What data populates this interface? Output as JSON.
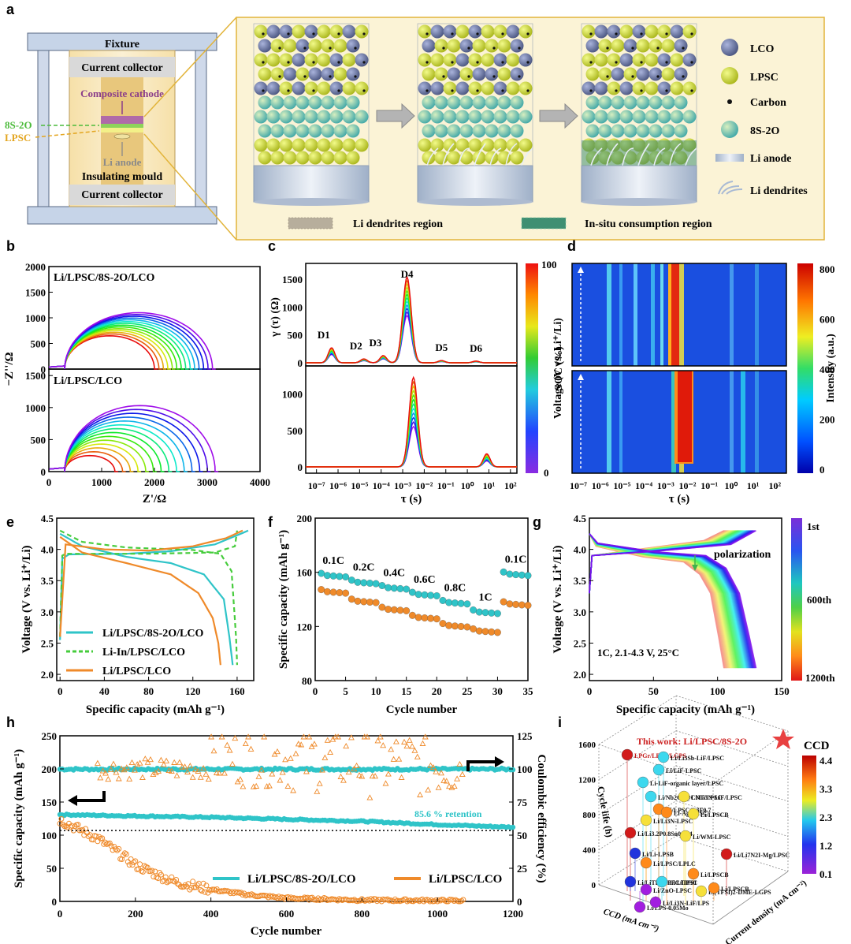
{
  "panels": {
    "a": {
      "letter": "a",
      "cell_labels": {
        "fixture": "Fixture",
        "current_collector_top": "Current collector",
        "composite_cathode": "Composite cathode",
        "layer_8s2o": "8S-2O",
        "layer_lpsc": "LPSC",
        "li_anode": "Li anode",
        "insulating_mould": "Insulating mould",
        "current_collector_bottom": "Current collector"
      },
      "legend": [
        {
          "label": "LCO",
          "color": "#6b7aa6"
        },
        {
          "label": "LPSC",
          "color": "#d4e33a"
        },
        {
          "label": "Carbon",
          "color": "#111111"
        },
        {
          "label": "8S-2O",
          "color": "#9dd6b8"
        },
        {
          "label": "Li anode",
          "color": "#c9d3e6"
        },
        {
          "label": "Li dendrites",
          "color": "#b9c8de"
        }
      ],
      "region_labels": {
        "dendrite": "Li dendrites region",
        "consumption": "In-situ consumption region"
      }
    },
    "b": {
      "letter": "b",
      "top_label": "Li/LPSC/8S-2O/LCO",
      "bottom_label": "Li/LPSC/LCO",
      "xlabel": "Z'/Ω",
      "ylabel": "−Z''/Ω",
      "xticks": [
        "0",
        "1000",
        "2000",
        "3000",
        "4000"
      ],
      "yticks": [
        "0",
        "500",
        "1000",
        "1500",
        "2000"
      ],
      "yticks2": [
        "0",
        "500",
        "1000",
        "1500"
      ]
    },
    "c": {
      "letter": "c",
      "peaks": [
        "D1",
        "D2",
        "D3",
        "D4",
        "D5",
        "D6"
      ],
      "ylabel": "γ (τ) (Ω)",
      "xlabel": "τ (s)",
      "yticks_top": [
        "0",
        "500",
        "1000",
        "1500"
      ],
      "yticks_bottom": [
        "0",
        "500",
        "1000"
      ],
      "xticks": [
        "10⁻⁷",
        "10⁻⁶",
        "10⁻⁵",
        "10⁻⁴",
        "10⁻³",
        "10⁻²",
        "10⁻¹",
        "10⁰",
        "10¹",
        "10²"
      ],
      "colorbar_label": "SOC (%)",
      "colorbar_ticks": [
        "100",
        "0"
      ]
    },
    "d": {
      "letter": "d",
      "xlabel": "τ (s)",
      "xticks": [
        "10⁻⁷",
        "10⁻⁶",
        "10⁻⁵",
        "10⁻⁴",
        "10⁻³",
        "10⁻²",
        "10⁻¹",
        "10⁰",
        "10¹",
        "10²"
      ],
      "colorbar_label": "Intensity (a.u.)",
      "colorbar_ticks": [
        "800",
        "600",
        "400",
        "200",
        "0"
      ]
    },
    "e": {
      "letter": "e",
      "xlabel": "Specific capacity (mAh g⁻¹)",
      "ylabel": "Voltage (V vs. Li⁺/Li)",
      "xticks": [
        "0",
        "40",
        "80",
        "120",
        "160"
      ],
      "yticks": [
        "2.0",
        "2.5",
        "3.0",
        "3.5",
        "4.0",
        "4.5"
      ],
      "legend": [
        {
          "label": "Li/LPSC/8S-2O/LCO",
          "color": "#2fc4c8",
          "dash": "none"
        },
        {
          "label": "Li-In/LPSC/LCO",
          "color": "#46cc3c",
          "dash": "6,4"
        },
        {
          "label": "Li/LPSC/LCO",
          "color": "#ef8a2a",
          "dash": "none"
        }
      ]
    },
    "f": {
      "letter": "f",
      "xlabel": "Cycle number",
      "ylabel": "Specific capacity (mAh g⁻¹)",
      "xticks": [
        "0",
        "5",
        "10",
        "15",
        "20",
        "25",
        "30",
        "35"
      ],
      "yticks": [
        "80",
        "120",
        "160",
        "200"
      ],
      "rate_labels": [
        "0.1C",
        "0.2C",
        "0.4C",
        "0.6C",
        "0.8C",
        "1C",
        "0.1C"
      ]
    },
    "g": {
      "letter": "g",
      "xlabel": "Specific capacity (mAh g⁻¹)",
      "ylabel": "Voltage (V vs. Li⁺/Li)",
      "xticks": [
        "0",
        "50",
        "100",
        "150"
      ],
      "yticks": [
        "2.0",
        "2.5",
        "3.0",
        "3.5",
        "4.0",
        "4.5"
      ],
      "annotation": "polarization",
      "condition": "1C, 2.1-4.3 V, 25°C",
      "colorbar_ticks": [
        "1st",
        "600th",
        "1200th"
      ]
    },
    "h": {
      "letter": "h",
      "xlabel": "Cycle number",
      "ylabel": "Specific capacity (mAh g⁻¹)",
      "ylabel_right": "Coulombic efficiency (%)",
      "xticks": [
        "0",
        "200",
        "400",
        "600",
        "800",
        "1000",
        "1200"
      ],
      "yticks": [
        "0",
        "50",
        "100",
        "150",
        "200",
        "250"
      ],
      "yticks_right": [
        "0",
        "25",
        "50",
        "75",
        "100",
        "125"
      ],
      "retention": "85.6 % retention",
      "legend": [
        {
          "label": "Li/LPSC/8S-2O/LCO",
          "color": "#2fc4c8"
        },
        {
          "label": "Li/LPSC/LCO",
          "color": "#ef8a2a"
        }
      ]
    },
    "i": {
      "letter": "i",
      "title": "This work: Li/LPSC/8S-2O",
      "zlabel": "Cycle life (h)",
      "xlabel": "CCD (mA cm⁻²)",
      "ylabel": "Current density (mA cm⁻²)",
      "zticks": [
        "0",
        "400",
        "800",
        "1200",
        "1600"
      ],
      "legend_title": "CCD",
      "legend_ticks": [
        "4.4",
        "3.3",
        "2.3",
        "1.2",
        "0.1"
      ],
      "labels": [
        "LPGr/LPSC/LGPS",
        "Li/Li3Sb-LiF/LPSC",
        "Li/LiF-LPSC",
        "Li-LiF-organic layer/LPSC",
        "Li/Nb2O5@CNT/LPSC",
        "Li/Li3N-LiF/LPSC",
        "Li/LPSC/0.3F0.7",
        "Li-Ag/LPSC",
        "Li/Li3N-LPSC",
        "Li/LPSCB",
        "Li/Li3.2P0.8Sn0.2S4",
        "Li/WM-LPSC",
        "Li/Li-LPSB",
        "Li/Li7N2I-Mg/LPSC",
        "Li/LPSC/LPLC",
        "Li/LPSCB",
        "Li/LiTFSI-PPC/LPSC",
        "Li/ZnO-LPSC",
        "Li/LiTFSI",
        "Li(TFSI)2-DME-LGPS",
        "Li/LPS-0.05Mo",
        "Li/Li3N-LiF/LPS",
        "Li/LPSCB"
      ]
    }
  },
  "chart_data": [
    {
      "type": "line",
      "panel": "b",
      "title": "Li/LPSC/8S-2O/LCO (top) and Li/LPSC/LCO (bottom) Nyquist plots",
      "xlabel": "Z'/Ω",
      "ylabel": "−Z''/Ω",
      "xlim": [
        0,
        4000
      ],
      "ylim_top": [
        0,
        2000
      ],
      "ylim_bottom": [
        0,
        1600
      ],
      "series_top": {
        "count": 14,
        "arc_start": 300,
        "arc_end_range": [
          2000,
          3100
        ],
        "arc_height_range": [
          650,
          1100
        ]
      },
      "series_bottom": {
        "count": 14,
        "arc_start": 300,
        "arc_end_range": [
          1250,
          3150
        ],
        "arc_height_range": [
          250,
          1030
        ]
      }
    },
    {
      "type": "line",
      "panel": "c",
      "xlabel": "τ (s)",
      "ylabel": "γ (τ) (Ω)",
      "xlim_log10": [
        -7.5,
        2.3
      ],
      "peaks_top": [
        {
          "name": "D1",
          "log_tau": -6.3,
          "height": 270
        },
        {
          "name": "D2",
          "log_tau": -4.8,
          "height": 70
        },
        {
          "name": "D3",
          "log_tau": -3.9,
          "height": 130
        },
        {
          "name": "D4",
          "log_tau": -2.8,
          "height": 1540
        },
        {
          "name": "D5",
          "log_tau": -1.2,
          "height": 40
        },
        {
          "name": "D6",
          "log_tau": 0.4,
          "height": 30
        }
      ],
      "peaks_bottom": [
        {
          "log_tau": -2.5,
          "height": 1230
        },
        {
          "log_tau": 0.9,
          "height": 180
        }
      ]
    },
    {
      "type": "heatmap",
      "panel": "d",
      "xlabel": "τ (s)",
      "ylabel": "SOC (%)",
      "color_range": [
        0,
        800
      ]
    },
    {
      "type": "line",
      "panel": "e",
      "xlabel": "Specific capacity (mAh g⁻¹)",
      "ylabel": "Voltage (V vs. Li⁺/Li)",
      "xlim": [
        -3,
        175
      ],
      "ylim": [
        1.9,
        4.5
      ],
      "series": [
        {
          "name": "Li/LPSC/8S-2O/LCO",
          "charge": [
            [
              0,
              2.55
            ],
            [
              2,
              3.85
            ],
            [
              8,
              3.92
            ],
            [
              60,
              3.93
            ],
            [
              100,
              3.97
            ],
            [
              140,
              4.08
            ],
            [
              170,
              4.3
            ]
          ],
          "discharge": [
            [
              0,
              4.25
            ],
            [
              20,
              4.05
            ],
            [
              60,
              3.88
            ],
            [
              100,
              3.78
            ],
            [
              130,
              3.6
            ],
            [
              148,
              3.2
            ],
            [
              153,
              2.6
            ],
            [
              156,
              2.15
            ]
          ]
        },
        {
          "name": "Li-In/LPSC/LCO",
          "charge": [
            [
              0,
              2.6
            ],
            [
              2,
              3.9
            ],
            [
              5,
              3.93
            ],
            [
              80,
              3.93
            ],
            [
              140,
              3.95
            ],
            [
              158,
              4.05
            ],
            [
              160,
              4.3
            ]
          ],
          "discharge": [
            [
              0,
              4.3
            ],
            [
              20,
              4.12
            ],
            [
              60,
              4.03
            ],
            [
              120,
              3.99
            ],
            [
              145,
              3.93
            ],
            [
              155,
              3.65
            ],
            [
              159,
              2.6
            ],
            [
              160,
              2.15
            ]
          ]
        },
        {
          "name": "Li/LPSC/LCO",
          "charge": [
            [
              0,
              2.6
            ],
            [
              5,
              4.08
            ],
            [
              40,
              4.0
            ],
            [
              80,
              3.98
            ],
            [
              120,
              4.05
            ],
            [
              150,
              4.18
            ],
            [
              165,
              4.3
            ]
          ],
          "discharge": [
            [
              0,
              4.2
            ],
            [
              20,
              3.95
            ],
            [
              60,
              3.78
            ],
            [
              100,
              3.6
            ],
            [
              125,
              3.3
            ],
            [
              138,
              2.9
            ],
            [
              143,
              2.5
            ],
            [
              145,
              2.15
            ]
          ]
        }
      ]
    },
    {
      "type": "scatter",
      "panel": "f",
      "xlabel": "Cycle number",
      "ylabel": "Specific capacity (mAh g⁻¹)",
      "xlim": [
        0,
        35
      ],
      "ylim": [
        80,
        200
      ],
      "categories": [
        "0.1C",
        "0.2C",
        "0.4C",
        "0.6C",
        "0.8C",
        "1C",
        "0.1C"
      ],
      "series": [
        {
          "name": "Li/LPSC/8S-2O/LCO",
          "values": [
            158,
            153,
            149,
            144,
            138,
            131,
            159
          ]
        },
        {
          "name": "Li/LPSC/LCO",
          "values": [
            146,
            139,
            133,
            127,
            121,
            117,
            137
          ]
        }
      ]
    },
    {
      "type": "line",
      "panel": "g",
      "xlabel": "Specific capacity (mAh g⁻¹)",
      "ylabel": "Voltage (V vs. Li⁺/Li)",
      "xlim": [
        0,
        150
      ],
      "ylim": [
        1.9,
        4.5
      ],
      "cycles": [
        1,
        1200
      ],
      "capacity_range": [
        105,
        130
      ]
    },
    {
      "type": "scatter",
      "panel": "h",
      "xlabel": "Cycle number",
      "ylabel": "Specific capacity (mAh g⁻¹)",
      "ylabel_right": "Coulombic efficiency (%)",
      "xlim": [
        0,
        1200
      ],
      "ylim": [
        0,
        250
      ],
      "ylim_right": [
        0,
        125
      ],
      "series": [
        {
          "name": "Li/LPSC/8S-2O/LCO capacity",
          "x": [
            0,
            200,
            400,
            600,
            800,
            1000,
            1200
          ],
          "values": [
            131,
            129,
            127,
            124,
            121,
            116,
            112
          ]
        },
        {
          "name": "Li/LPSC/LCO capacity",
          "x": [
            0,
            100,
            200,
            300,
            400,
            500,
            600,
            800,
            1070
          ],
          "values": [
            123,
            95,
            55,
            30,
            18,
            10,
            5,
            2,
            1
          ]
        },
        {
          "name": "Li/LPSC/8S-2O/LCO CE",
          "x": [
            0,
            1200
          ],
          "values": [
            99.8,
            99.8
          ]
        },
        {
          "name": "Li/LPSC/LCO CE",
          "x": [
            100,
            1070
          ],
          "values": [
            95,
            110
          ]
        }
      ],
      "retention_ref": 107
    },
    {
      "type": "scatter",
      "panel": "i",
      "title": "This work: Li/LPSC/8S-2O",
      "zlabel": "Cycle life (h)",
      "legend_title": "CCD",
      "color_range": [
        0.1,
        4.4
      ]
    }
  ]
}
